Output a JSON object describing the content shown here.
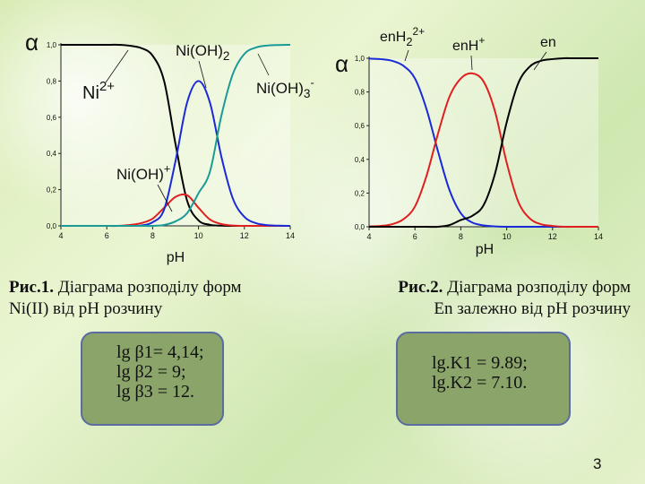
{
  "chart_data": [
    {
      "type": "line",
      "x": [
        4,
        4.5,
        5,
        5.5,
        6,
        6.5,
        7,
        7.5,
        8,
        8.5,
        9,
        9.5,
        10,
        10.5,
        11,
        11.5,
        12,
        12.5,
        13,
        13.5,
        14
      ],
      "series": [
        {
          "name": "Ni²⁺",
          "color": "#000000",
          "values": [
            1.0,
            1.0,
            1.0,
            1.0,
            1.0,
            1.0,
            0.995,
            0.982,
            0.94,
            0.8,
            0.45,
            0.14,
            0.03,
            0.006,
            0.001,
            0.0,
            0.0,
            0.0,
            0.0,
            0.0,
            0.0
          ]
        },
        {
          "name": "Ni(OH)⁺",
          "color": "#e02020",
          "values": [
            0.0,
            0.0,
            0.0,
            0.0,
            0.0,
            0.0,
            0.005,
            0.015,
            0.04,
            0.1,
            0.16,
            0.17,
            0.1,
            0.035,
            0.01,
            0.002,
            0.0,
            0.0,
            0.0,
            0.0,
            0.0
          ]
        },
        {
          "name": "Ni(OH)₂",
          "color": "#1a2ad8",
          "values": [
            0.0,
            0.0,
            0.0,
            0.0,
            0.0,
            0.0,
            0.0,
            0.002,
            0.02,
            0.09,
            0.36,
            0.68,
            0.8,
            0.68,
            0.38,
            0.15,
            0.05,
            0.015,
            0.004,
            0.001,
            0.0
          ]
        },
        {
          "name": "Ni(OH)₃⁻",
          "color": "#1a9a96",
          "values": [
            0.0,
            0.0,
            0.0,
            0.0,
            0.0,
            0.0,
            0.0,
            0.0,
            0.0,
            0.005,
            0.025,
            0.07,
            0.18,
            0.3,
            0.61,
            0.84,
            0.95,
            0.985,
            0.996,
            0.999,
            1.0
          ]
        }
      ],
      "ylabel": "α",
      "xlabel": "pH",
      "xlim": [
        4,
        14
      ],
      "ylim": [
        0,
        1.0
      ],
      "xticks": [
        "4",
        "6",
        "8",
        "10",
        "12",
        "14"
      ],
      "yticks": [
        "0,0",
        "0,2",
        "0,4",
        "0,6",
        "0,8",
        "1,0"
      ],
      "annotations": {
        "ni2": "Ni2+",
        "nioh2": "Ni(OH)2",
        "nioh3": "Ni(OH)3-",
        "nioh": "Ni(OH)+"
      }
    },
    {
      "type": "line",
      "x": [
        4,
        4.5,
        5,
        5.5,
        6,
        6.5,
        7,
        7.5,
        8,
        8.5,
        9,
        9.5,
        10,
        10.5,
        11,
        11.5,
        12,
        12.5,
        13,
        13.5,
        14
      ],
      "series": [
        {
          "name": "enH₂²⁺",
          "color": "#1a2ad8",
          "values": [
            0.998,
            0.995,
            0.985,
            0.955,
            0.88,
            0.7,
            0.45,
            0.22,
            0.08,
            0.025,
            0.008,
            0.002,
            0.0,
            0.0,
            0.0,
            0.0,
            0.0,
            0.0,
            0.0,
            0.0,
            0.0
          ]
        },
        {
          "name": "enH⁺",
          "color": "#e02020",
          "values": [
            0.002,
            0.005,
            0.015,
            0.045,
            0.12,
            0.3,
            0.55,
            0.77,
            0.88,
            0.91,
            0.86,
            0.68,
            0.38,
            0.15,
            0.05,
            0.015,
            0.005,
            0.0,
            0.0,
            0.0,
            0.0
          ]
        },
        {
          "name": "en",
          "color": "#000000",
          "values": [
            0.0,
            0.0,
            0.0,
            0.0,
            0.0,
            0.0,
            0.0,
            0.01,
            0.04,
            0.065,
            0.13,
            0.32,
            0.62,
            0.85,
            0.95,
            0.985,
            0.995,
            1.0,
            1.0,
            1.0,
            1.0
          ]
        }
      ],
      "ylabel": "α",
      "xlabel": "pH",
      "xlim": [
        4,
        14
      ],
      "ylim": [
        0,
        1.0
      ],
      "xticks": [
        "4",
        "6",
        "8",
        "10",
        "12",
        "14"
      ],
      "yticks": [
        "0,0",
        "0,2",
        "0,4",
        "0,6",
        "0,8",
        "1,0"
      ],
      "annotations": {
        "enh2": "enH22+",
        "enh": "enH+",
        "en": "en"
      }
    }
  ],
  "captions": {
    "fig1_bold": "Рис.1.",
    "fig1_line1": " Діаграма розподілу форм",
    "fig1_line2": "Ni(II) від pH розчину",
    "fig2_bold": "Рис.2.",
    "fig2_line1": " Діаграма розподілу форм",
    "fig2_line2": "En залежно від pH розчину"
  },
  "box1": {
    "line1": "lg β1= 4,14;",
    "line2": "lg β2 = 9;",
    "line3": "lg β3 = 12."
  },
  "box2": {
    "line1": "lg.K1 = 9.89;",
    "line2": "lg.K2 = 7.10."
  },
  "page_number": "3"
}
